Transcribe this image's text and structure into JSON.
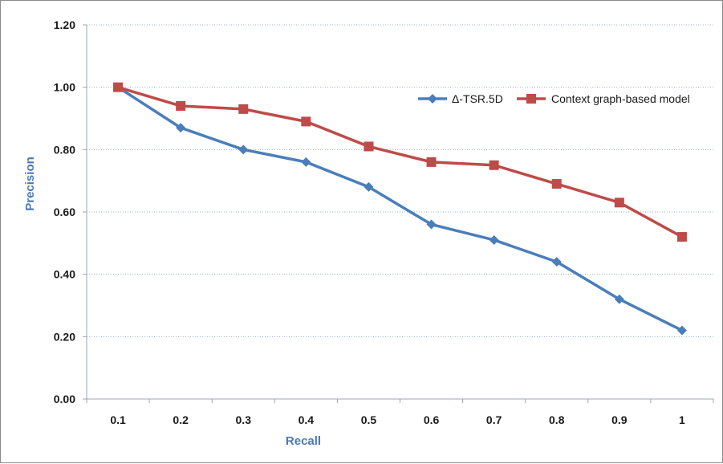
{
  "chart_data": {
    "type": "line",
    "title": "",
    "xlabel": "Recall",
    "ylabel": "Precision",
    "categories": [
      "0.1",
      "0.2",
      "0.3",
      "0.4",
      "0.5",
      "0.6",
      "0.7",
      "0.8",
      "0.9",
      "1"
    ],
    "ylim": [
      0,
      1.2
    ],
    "yticks": [
      "0.00",
      "0.20",
      "0.40",
      "0.60",
      "0.80",
      "1.00",
      "1.20"
    ],
    "grid": true,
    "legend_position": "top-right",
    "series": [
      {
        "name": "Δ-TSR.5D",
        "marker": "diamond",
        "color": "#4a7ebb",
        "values": [
          1.0,
          0.87,
          0.8,
          0.76,
          0.68,
          0.56,
          0.51,
          0.44,
          0.32,
          0.22
        ]
      },
      {
        "name": "Context graph-based model",
        "marker": "square",
        "color": "#be4b48",
        "values": [
          1.0,
          0.94,
          0.93,
          0.89,
          0.81,
          0.76,
          0.75,
          0.69,
          0.63,
          0.52
        ]
      }
    ]
  }
}
